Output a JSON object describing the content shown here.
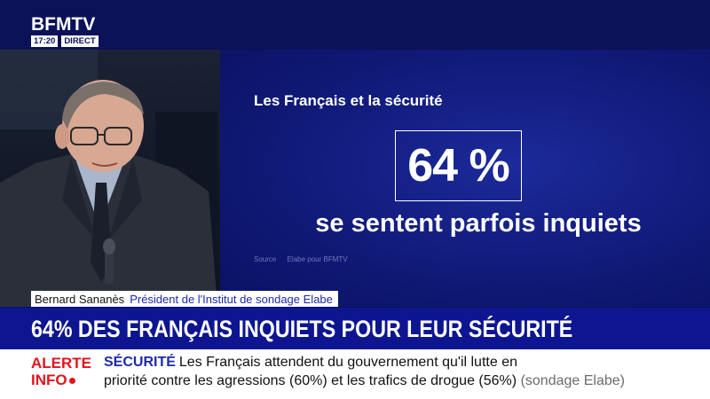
{
  "logo": {
    "brand": "BFMTV",
    "time": "17:20",
    "live": "DIRECT"
  },
  "graphic": {
    "title": "Les Français et la sécurité",
    "stat": "64 %",
    "caption": "se sentent parfois inquiets",
    "source_label": "Source",
    "source_value": "Elabe pour BFMTV"
  },
  "strap": {
    "name": "Bernard Sananès",
    "role": "Président de l'Institut de sondage Elabe"
  },
  "headline": "64% DES FRANÇAIS INQUIETS POUR LEUR SÉCURITÉ",
  "ticker": {
    "alert_line1": "ALERTE",
    "alert_line2": "INFO",
    "rubric": "SÉCURITÉ",
    "line1": "Les Français attendent du gouvernement qu'il lutte en",
    "line2": "priorité contre les agressions (60%) et les trafics de drogue (56%)",
    "note": "(sondage Elabe)"
  },
  "colors": {
    "navy": "#0b1258",
    "headline_blue": "#0d1690",
    "alert_red": "#e1141e",
    "accent_blue": "#1d2aa6"
  }
}
